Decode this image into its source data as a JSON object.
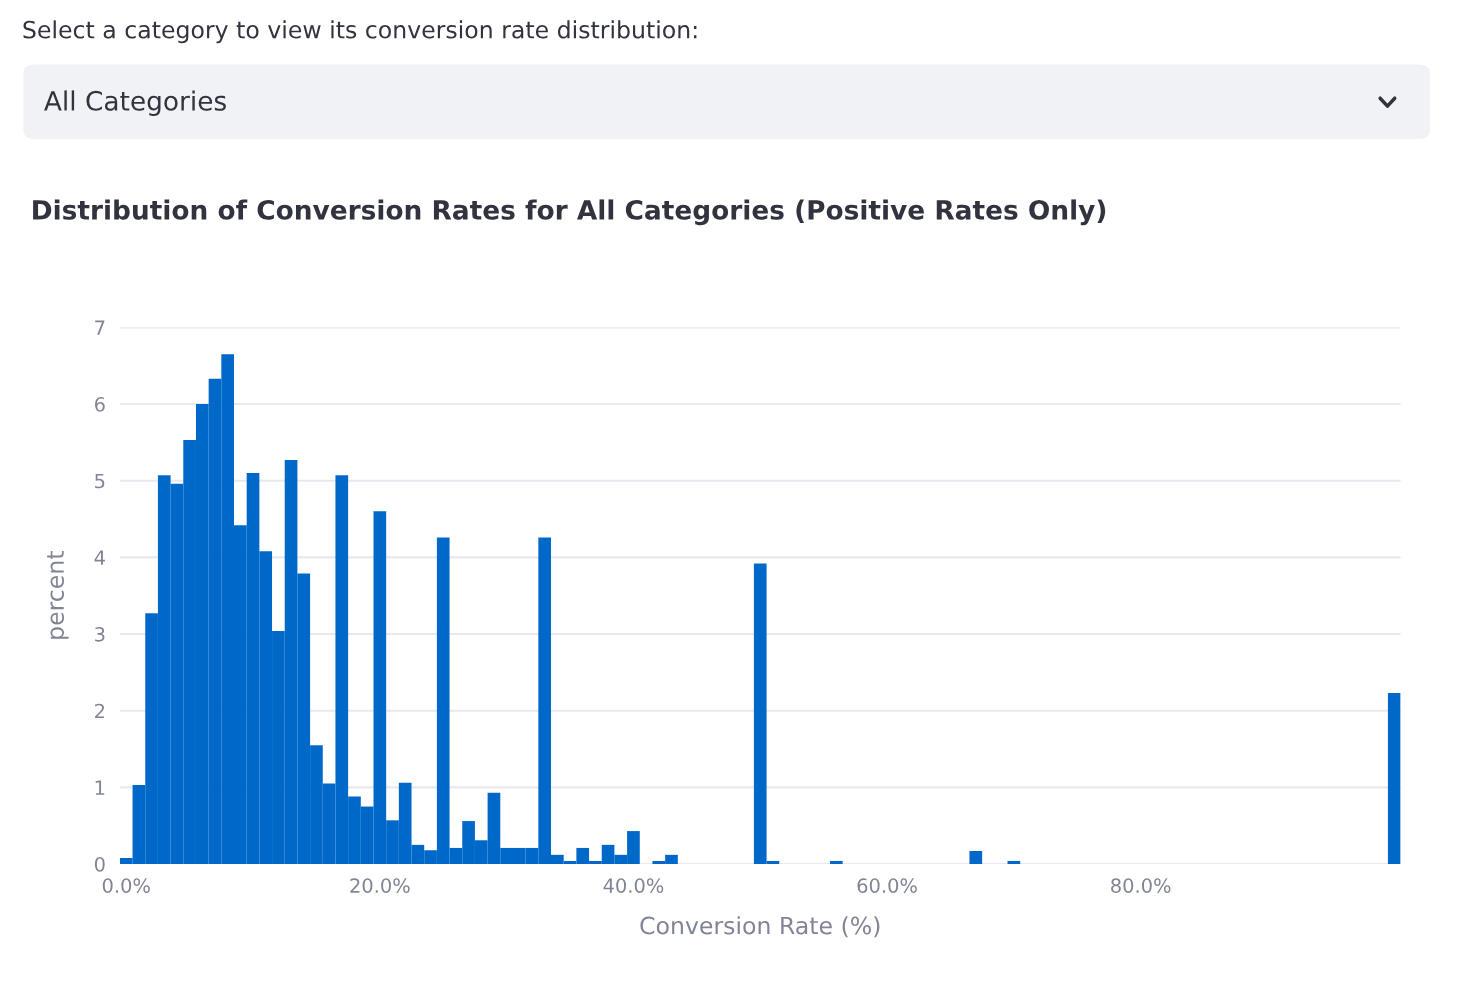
{
  "chart_data": {
    "type": "histogram",
    "title": "Distribution of Conversion Rates for All Categories (Positive Rates Only)",
    "annotations": [
      "Select a category to view its conversion rate distribution:",
      "All Categories"
    ],
    "xlabel": "Conversion Rate (%)",
    "ylabel": "percent",
    "color": "#0068c9",
    "bins": [
      -0.5,
      0.5,
      1.5,
      2.5,
      3.5,
      4.5,
      5.5,
      6.5,
      7.5,
      8.5,
      9.5,
      10.5,
      11.5,
      12.5,
      13.5,
      14.5,
      15.5,
      16.5,
      17.5,
      18.5,
      19.5,
      20.5,
      21.5,
      22.5,
      23.5,
      24.5,
      25.5,
      26.5,
      27.5,
      28.5,
      29.5,
      30.5,
      31.5,
      32.5,
      33.5,
      34.5,
      35.5,
      36.5,
      37.5,
      38.5,
      39.5,
      40.5,
      41.5,
      42.5,
      43.5,
      44.5,
      45.5,
      46.5,
      47.5,
      48.5,
      49.5,
      50.5,
      51.5,
      52.5,
      53.5,
      54.5,
      55.5,
      56.5,
      57.5,
      58.5,
      59.5,
      60.5,
      61.5,
      62.5,
      63.5,
      64.5,
      65.5,
      66.5,
      67.5,
      68.5,
      69.5,
      70.5,
      71.5,
      72.5,
      73.5,
      74.5,
      75.5,
      76.5,
      77.5,
      78.5,
      79.5,
      80.5,
      81.5,
      82.5,
      83.5,
      84.5,
      85.5,
      86.5,
      87.5,
      88.5,
      89.5,
      90.5,
      91.5,
      92.5,
      93.5,
      94.5,
      95.5,
      96.5,
      97.5,
      98.5,
      99.5,
      100.5
    ],
    "values": [
      0.08,
      1.03,
      3.27,
      5.07,
      4.96,
      5.53,
      6.0,
      6.33,
      6.65,
      4.42,
      5.1,
      4.08,
      3.04,
      5.27,
      3.79,
      1.55,
      1.05,
      5.07,
      0.88,
      0.75,
      4.6,
      0.57,
      1.06,
      0.25,
      0.18,
      4.26,
      0.21,
      0.56,
      0.31,
      0.93,
      0.21,
      0.21,
      0.21,
      4.26,
      0.12,
      0.04,
      0.21,
      0.04,
      0.25,
      0.12,
      0.43,
      0,
      0.04,
      0.12,
      0,
      0,
      0,
      0,
      0,
      0,
      3.92,
      0.04,
      0,
      0,
      0,
      0,
      0.04,
      0,
      0,
      0,
      0,
      0,
      0,
      0,
      0,
      0,
      0,
      0.17,
      0,
      0,
      0.04,
      0,
      0,
      0,
      0,
      0,
      0,
      0,
      0,
      0,
      0,
      0,
      0,
      0,
      0,
      0,
      0,
      0,
      0,
      0,
      0,
      0,
      0,
      0,
      0,
      0,
      0,
      0,
      0,
      0,
      2.23
    ],
    "xlim": [
      -0.5,
      100.5
    ],
    "ylim": [
      0,
      7
    ],
    "xticks": [
      {
        "value": 0,
        "label": "0.0%"
      },
      {
        "value": 20,
        "label": "20.0%"
      },
      {
        "value": 40,
        "label": "40.0%"
      },
      {
        "value": 60,
        "label": "60.0%"
      },
      {
        "value": 80,
        "label": "80.0%"
      }
    ],
    "yticks": [
      0,
      1,
      2,
      3,
      4,
      5,
      6,
      7
    ],
    "grid": "y"
  }
}
